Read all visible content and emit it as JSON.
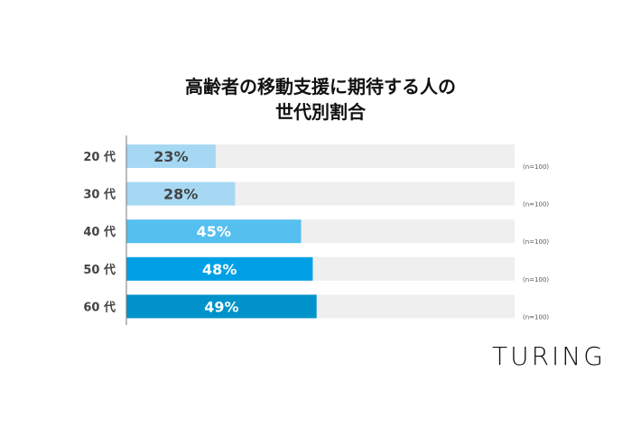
{
  "chart_data": {
    "type": "bar",
    "orientation": "horizontal",
    "title_lines": [
      "高齢者の移動支援に期待する人の",
      "世代別割合"
    ],
    "categories": [
      "20 代",
      "30 代",
      "40 代",
      "50 代",
      "60 代"
    ],
    "values": [
      23,
      28,
      45,
      48,
      49
    ],
    "value_labels": [
      "23%",
      "28%",
      "45%",
      "48%",
      "49%"
    ],
    "sample_notes": [
      "(n=100)",
      "(n=100)",
      "(n=100)",
      "(n=100)",
      "(n=100)"
    ],
    "xlim": [
      0,
      100
    ],
    "grid": false,
    "colors": [
      "#a6d8f4",
      "#a6d8f4",
      "#55bfef",
      "#009fe6",
      "#0092c8"
    ],
    "track_color": "#efefef",
    "label_colors": [
      "#444444",
      "#444444",
      "#ffffff",
      "#ffffff",
      "#ffffff"
    ]
  },
  "logo": "TURING"
}
